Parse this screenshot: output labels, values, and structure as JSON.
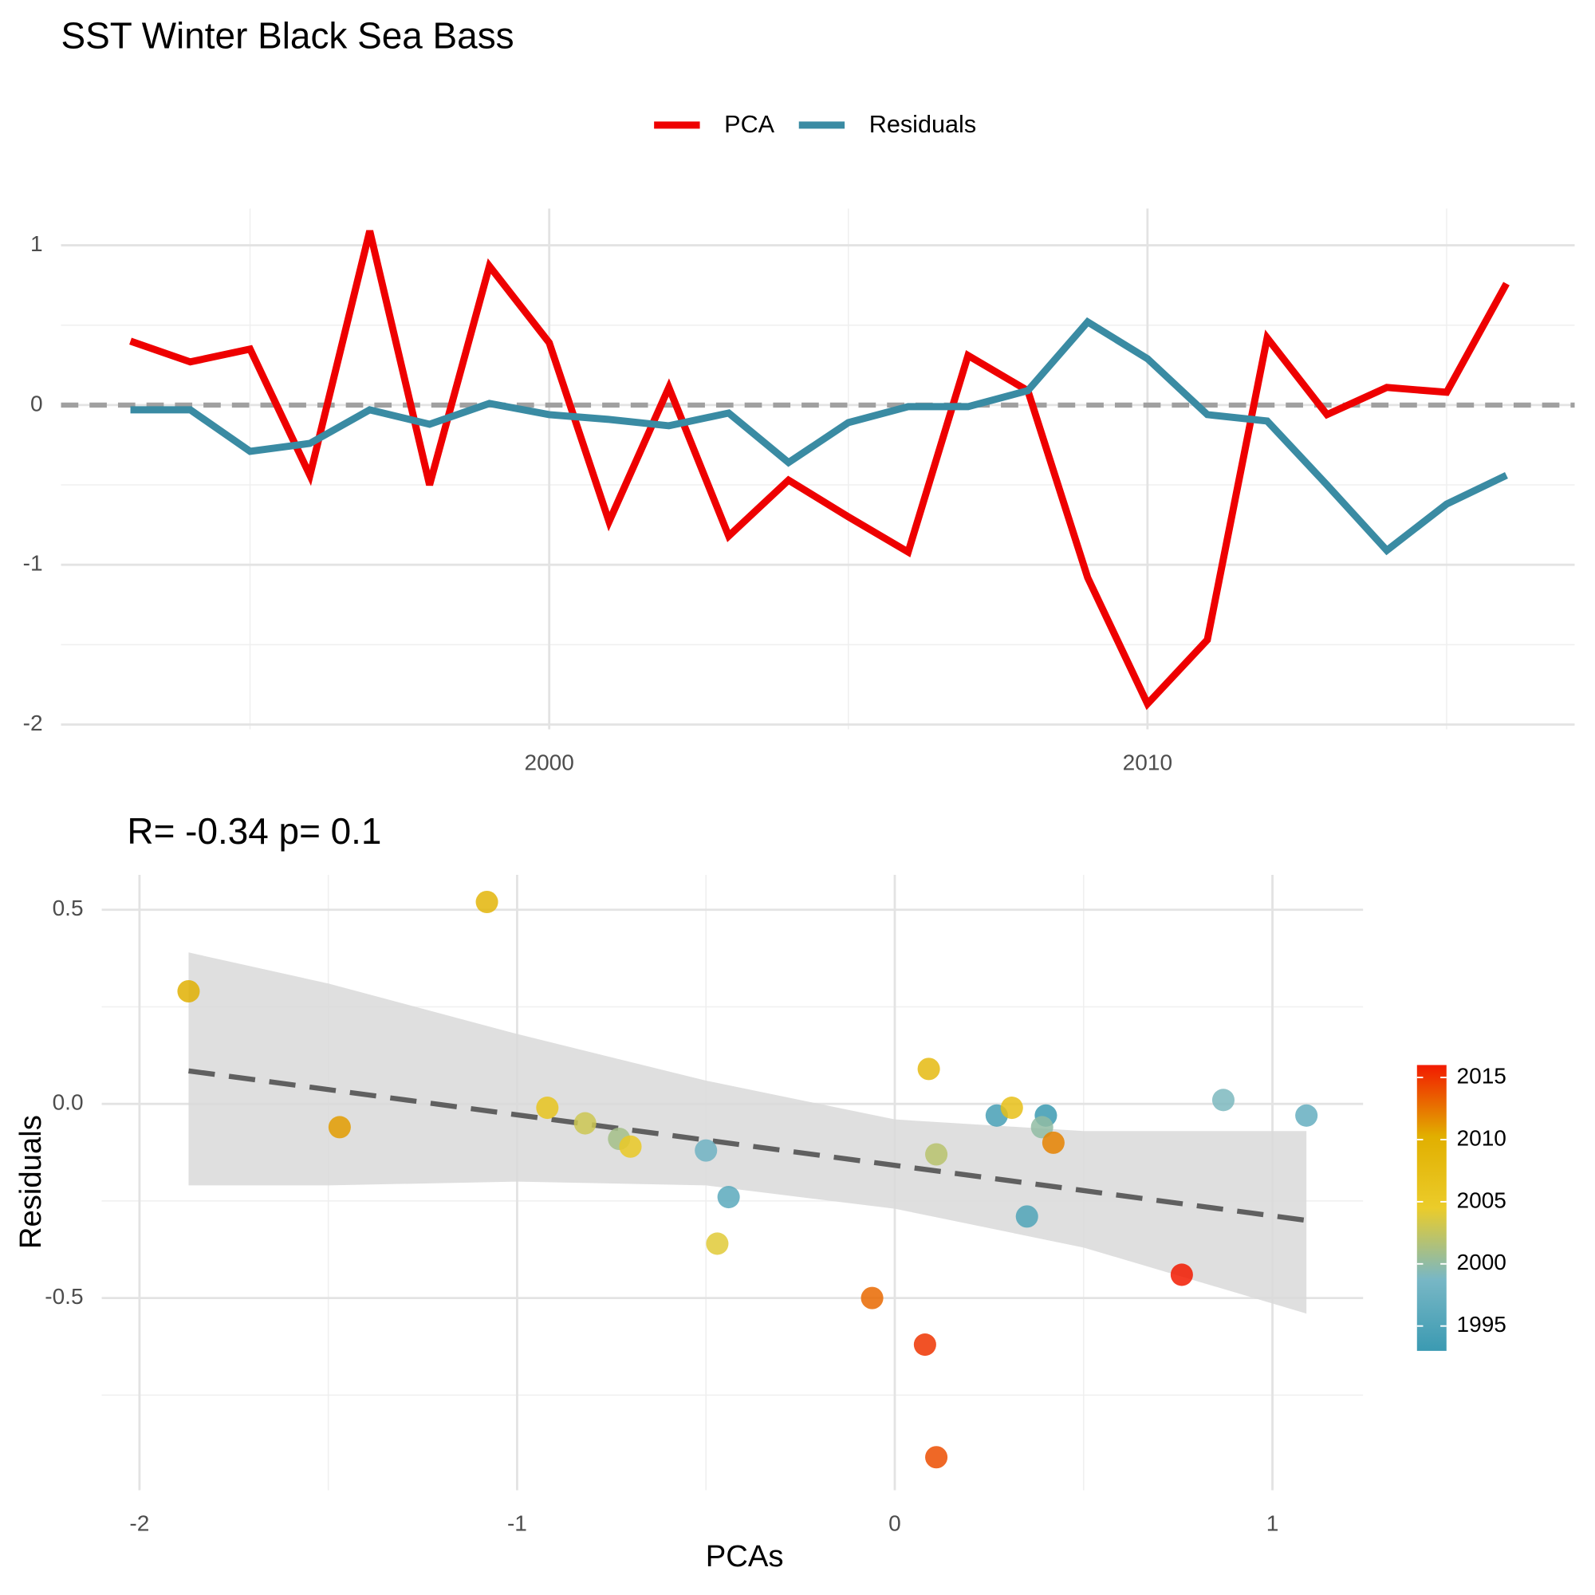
{
  "chart_data": [
    {
      "type": "line",
      "title": "SST Winter Black Sea Bass",
      "x": [
        1993,
        1994,
        1995,
        1996,
        1997,
        1998,
        1999,
        2000,
        2001,
        2002,
        2003,
        2004,
        2005,
        2006,
        2007,
        2008,
        2009,
        2010,
        2011,
        2012,
        2013,
        2014,
        2015,
        2016
      ],
      "series": [
        {
          "name": "PCA",
          "color": "#ee0000",
          "values": [
            0.4,
            0.27,
            0.35,
            -0.44,
            1.09,
            -0.5,
            0.87,
            0.39,
            -0.73,
            0.11,
            -0.82,
            -0.47,
            -0.7,
            -0.92,
            0.31,
            0.09,
            -1.08,
            -1.87,
            -1.47,
            0.42,
            -0.06,
            0.11,
            0.08,
            0.76
          ]
        },
        {
          "name": "Residuals",
          "color": "#3a8ba3",
          "values": [
            -0.03,
            -0.03,
            -0.29,
            -0.24,
            -0.03,
            -0.12,
            0.01,
            -0.06,
            -0.09,
            -0.13,
            -0.05,
            -0.36,
            -0.11,
            -0.01,
            -0.01,
            0.09,
            0.52,
            0.29,
            -0.06,
            -0.1,
            -0.5,
            -0.91,
            -0.62,
            -0.44
          ]
        }
      ],
      "xlim": [
        1991.84,
        2017.14
      ],
      "ylim": [
        -2.03,
        1.23
      ],
      "xticks": [
        2000,
        2010
      ],
      "xminor": [
        1995,
        2005,
        2015
      ],
      "yticks": [
        -2,
        -1,
        0,
        1
      ],
      "yminor": [
        -1.5,
        -0.5,
        0.5
      ],
      "hline": {
        "value": 0,
        "color": "#a0a0a0"
      },
      "legend": "top",
      "grid": true
    },
    {
      "type": "scatter",
      "title": "R= -0.34  p= 0.1",
      "xlabel": "PCAs",
      "ylabel": "Residuals",
      "x": [
        0.4,
        0.27,
        0.35,
        -0.44,
        1.09,
        -0.5,
        0.87,
        0.39,
        -0.73,
        0.11,
        -0.82,
        -0.47,
        -0.7,
        -0.92,
        0.31,
        0.09,
        -1.08,
        -1.87,
        -1.47,
        0.42,
        -0.06,
        0.11,
        0.08,
        0.76
      ],
      "y": [
        -0.03,
        -0.03,
        -0.29,
        -0.24,
        -0.03,
        -0.12,
        0.01,
        -0.06,
        -0.09,
        -0.13,
        -0.05,
        -0.36,
        -0.11,
        -0.01,
        -0.01,
        0.09,
        0.52,
        0.29,
        -0.06,
        -0.1,
        -0.5,
        -0.91,
        -0.62,
        -0.44
      ],
      "color_values": [
        1993,
        1994,
        1995,
        1996,
        1997,
        1998,
        1999,
        2000,
        2001,
        2002,
        2003,
        2004,
        2005,
        2006,
        2007,
        2008,
        2009,
        2010,
        2011,
        2012,
        2013,
        2014,
        2015,
        2016
      ],
      "colorscale": {
        "colors": [
          "#3b9ab2",
          "#78b7c5",
          "#ebcc2a",
          "#e1af00",
          "#f21a00"
        ],
        "limits": [
          1993,
          2016
        ],
        "ticks": [
          1995,
          2000,
          2005,
          2010,
          2015
        ]
      },
      "fit": {
        "x": [
          -1.87,
          1.09
        ],
        "y": [
          0.085,
          -0.3
        ],
        "color": "#606060"
      },
      "ribbon": {
        "x": [
          -1.87,
          -1.5,
          -1,
          -0.5,
          0,
          0.5,
          1.09
        ],
        "upper": [
          0.39,
          0.31,
          0.18,
          0.06,
          -0.04,
          -0.07,
          -0.07
        ],
        "lower": [
          -0.21,
          -0.21,
          -0.2,
          -0.21,
          -0.27,
          -0.37,
          -0.54
        ],
        "color": "#d9d9d9"
      },
      "xlim": [
        -2.1,
        1.24
      ],
      "ylim": [
        -0.995,
        0.59
      ],
      "xticks": [
        -2,
        -1,
        0,
        1
      ],
      "xminor": [
        -1.5,
        -0.5,
        0.5
      ],
      "yticks": [
        -0.5,
        {
          "value": 0,
          "label": "0.0"
        },
        0.5
      ],
      "yminor": [
        -0.75,
        -0.25,
        0.25
      ],
      "grid": true
    }
  ]
}
